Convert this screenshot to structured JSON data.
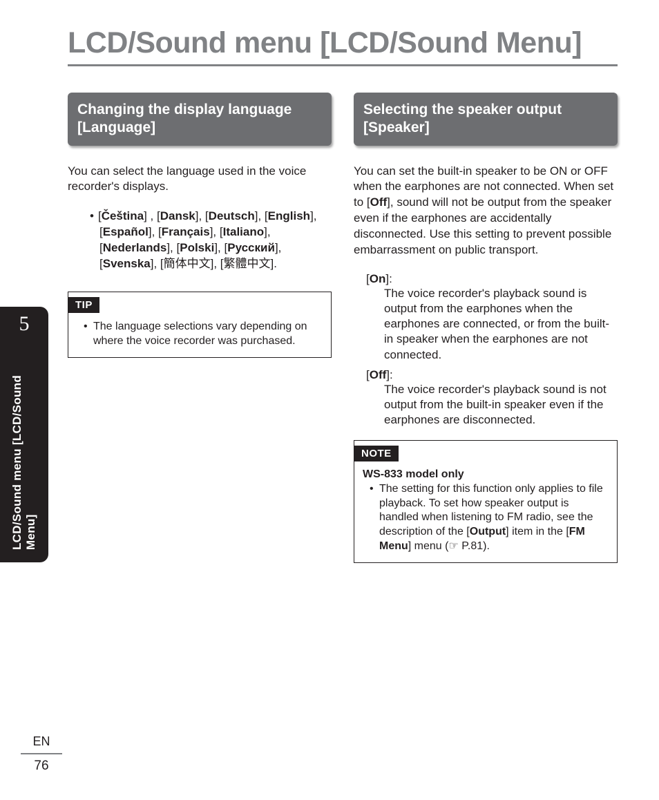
{
  "colors": {
    "heading_gray": "#808285",
    "box_gray": "#6d6e71",
    "text": "#231f20",
    "white": "#ffffff",
    "black": "#231f20"
  },
  "typography": {
    "page_title_fontsize": 43,
    "section_heading_fontsize": 21,
    "body_fontsize": 17,
    "callout_label_fontsize": 15,
    "tab_num_fontsize": 30,
    "tab_label_fontsize": 17
  },
  "page_title": "LCD/Sound menu [LCD/Sound Menu]",
  "side_tab": {
    "number": "5",
    "label": "LCD/Sound menu [LCD/Sound Menu]"
  },
  "footer": {
    "lang": "EN",
    "page": "76"
  },
  "left": {
    "heading": "Changing the display language [Language]",
    "intro": "You can select the language used in the voice recorder's displays.",
    "languages": [
      "Čeština",
      "Dansk",
      "Deutsch",
      "English",
      "Español",
      "Français",
      "Italiano",
      "Nederlands",
      "Polski",
      "Русский",
      "Svenska"
    ],
    "languages_plain": [
      "簡体中文",
      "繁體中文"
    ],
    "tip_label": "TIP",
    "tip_item": "The language selections vary depending on where the voice recorder was purchased."
  },
  "right": {
    "heading": "Selecting the speaker output [Speaker]",
    "intro_pre": "You can set the built-in speaker to be ON or OFF when the earphones are not connected. When set to [",
    "intro_bold": "Off",
    "intro_post": "], sound will not be output from the speaker even if the earphones are accidentally disconnected. Use this setting to prevent possible embarrassment on public transport.",
    "options": [
      {
        "term": "On",
        "desc": "The voice recorder's playback sound is output from the earphones when the earphones are connected, or from the built-in speaker when the earphones are not connected."
      },
      {
        "term": "Off",
        "desc": "The voice recorder's playback sound is not output from the built-in speaker even if the earphones are disconnected."
      }
    ],
    "note_label": "NOTE",
    "note_sub": "WS-833 model only",
    "note_pre": "The setting for this function only applies to file playback. To set how speaker output is handled when listening to FM radio, see the description of the [",
    "note_b1": "Output",
    "note_mid": "] item in the [",
    "note_b2": "FM Menu",
    "note_post": "] menu (☞ P.81)."
  }
}
